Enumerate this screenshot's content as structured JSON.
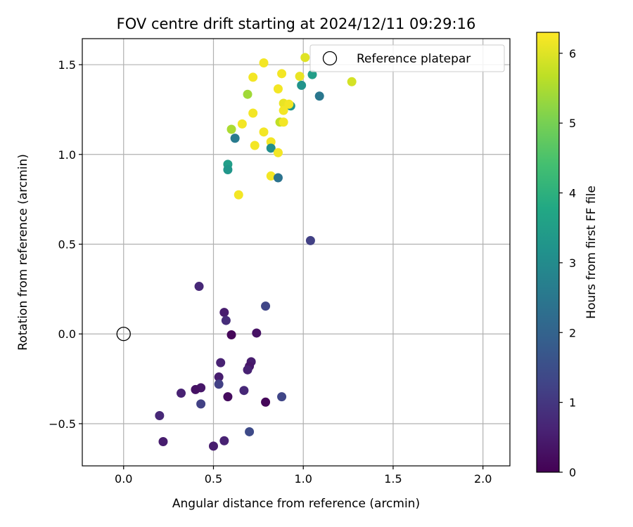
{
  "chart_data": {
    "type": "scatter",
    "title": "FOV centre drift starting at 2024/12/11 09:29:16",
    "xlabel": "Angular distance from reference (arcmin)",
    "ylabel": "Rotation from reference (arcmin)",
    "xlim": [
      -0.23,
      2.15
    ],
    "ylim": [
      -0.735,
      1.645
    ],
    "x_ticks": [
      0.0,
      0.5,
      1.0,
      1.5,
      2.0
    ],
    "x_tick_labels": [
      "0.0",
      "0.5",
      "1.0",
      "1.5",
      "2.0"
    ],
    "y_ticks": [
      -0.5,
      0.0,
      0.5,
      1.0,
      1.5
    ],
    "y_tick_labels": [
      "−0.5",
      "0.0",
      "0.5",
      "1.0",
      "1.5"
    ],
    "grid": true,
    "legend": {
      "placement": "top-right",
      "entries": [
        "Reference platepar"
      ]
    },
    "reference_point": {
      "name": "Reference platepar",
      "x": 0.0,
      "y": 0.0
    },
    "colorbar": {
      "label": "Hours from first FF file",
      "colormap": "viridis",
      "range": [
        0,
        6.3
      ],
      "ticks": [
        0,
        1,
        2,
        3,
        4,
        5,
        6
      ],
      "tick_labels": [
        "0",
        "1",
        "2",
        "3",
        "4",
        "5",
        "6"
      ]
    },
    "points": [
      {
        "x": 0.42,
        "y": 0.265,
        "t": 0.7
      },
      {
        "x": 0.56,
        "y": 0.12,
        "t": 0.5
      },
      {
        "x": 0.57,
        "y": 0.075,
        "t": 0.8
      },
      {
        "x": 0.79,
        "y": 0.155,
        "t": 1.3
      },
      {
        "x": 0.6,
        "y": -0.005,
        "t": 0.1
      },
      {
        "x": 0.74,
        "y": 0.005,
        "t": 0.3
      },
      {
        "x": 1.04,
        "y": 0.52,
        "t": 1.2
      },
      {
        "x": 0.54,
        "y": -0.16,
        "t": 0.6
      },
      {
        "x": 0.71,
        "y": -0.155,
        "t": 0.5
      },
      {
        "x": 0.7,
        "y": -0.18,
        "t": 0.4
      },
      {
        "x": 0.69,
        "y": -0.2,
        "t": 0.6
      },
      {
        "x": 0.53,
        "y": -0.24,
        "t": 0.5
      },
      {
        "x": 0.53,
        "y": -0.28,
        "t": 1.2
      },
      {
        "x": 0.43,
        "y": -0.3,
        "t": 0.4
      },
      {
        "x": 0.4,
        "y": -0.31,
        "t": 0.3
      },
      {
        "x": 0.32,
        "y": -0.33,
        "t": 0.6
      },
      {
        "x": 0.58,
        "y": -0.35,
        "t": 0.2
      },
      {
        "x": 0.67,
        "y": -0.315,
        "t": 0.7
      },
      {
        "x": 0.43,
        "y": -0.39,
        "t": 1.2
      },
      {
        "x": 0.79,
        "y": -0.38,
        "t": 0.1
      },
      {
        "x": 0.88,
        "y": -0.35,
        "t": 1.3
      },
      {
        "x": 0.2,
        "y": -0.455,
        "t": 0.7
      },
      {
        "x": 0.22,
        "y": -0.6,
        "t": 0.5
      },
      {
        "x": 0.56,
        "y": -0.595,
        "t": 0.6
      },
      {
        "x": 0.7,
        "y": -0.545,
        "t": 1.4
      },
      {
        "x": 0.5,
        "y": -0.625,
        "t": 0.5
      },
      {
        "x": 0.78,
        "y": 1.51,
        "t": 6.2
      },
      {
        "x": 1.01,
        "y": 1.54,
        "t": 6.0
      },
      {
        "x": 0.72,
        "y": 1.43,
        "t": 6.2
      },
      {
        "x": 0.88,
        "y": 1.45,
        "t": 6.2
      },
      {
        "x": 0.98,
        "y": 1.435,
        "t": 6.1
      },
      {
        "x": 1.05,
        "y": 1.445,
        "t": 3.5
      },
      {
        "x": 1.27,
        "y": 1.405,
        "t": 5.9
      },
      {
        "x": 0.69,
        "y": 1.335,
        "t": 5.4
      },
      {
        "x": 0.86,
        "y": 1.365,
        "t": 6.2
      },
      {
        "x": 0.99,
        "y": 1.385,
        "t": 3.2
      },
      {
        "x": 1.09,
        "y": 1.325,
        "t": 2.5
      },
      {
        "x": 0.93,
        "y": 1.27,
        "t": 3.3
      },
      {
        "x": 0.89,
        "y": 1.285,
        "t": 6.1
      },
      {
        "x": 0.92,
        "y": 1.28,
        "t": 6.2
      },
      {
        "x": 0.89,
        "y": 1.245,
        "t": 6.2
      },
      {
        "x": 0.72,
        "y": 1.23,
        "t": 6.2
      },
      {
        "x": 0.66,
        "y": 1.17,
        "t": 6.2
      },
      {
        "x": 0.87,
        "y": 1.18,
        "t": 5.7
      },
      {
        "x": 0.89,
        "y": 1.18,
        "t": 6.2
      },
      {
        "x": 0.6,
        "y": 1.14,
        "t": 5.5
      },
      {
        "x": 0.78,
        "y": 1.125,
        "t": 6.2
      },
      {
        "x": 0.62,
        "y": 1.09,
        "t": 2.6
      },
      {
        "x": 0.73,
        "y": 1.05,
        "t": 6.2
      },
      {
        "x": 0.82,
        "y": 1.07,
        "t": 6.2
      },
      {
        "x": 0.82,
        "y": 1.035,
        "t": 3.1
      },
      {
        "x": 0.86,
        "y": 1.01,
        "t": 6.2
      },
      {
        "x": 0.58,
        "y": 0.945,
        "t": 3.5
      },
      {
        "x": 0.58,
        "y": 0.915,
        "t": 3.3
      },
      {
        "x": 0.82,
        "y": 0.88,
        "t": 6.2
      },
      {
        "x": 0.86,
        "y": 0.87,
        "t": 2.4
      },
      {
        "x": 0.64,
        "y": 0.775,
        "t": 6.2
      }
    ]
  }
}
